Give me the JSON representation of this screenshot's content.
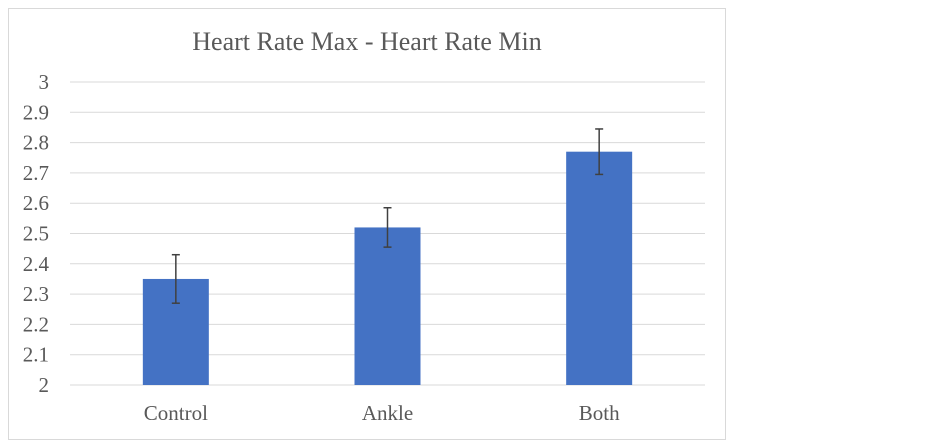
{
  "chart_data": {
    "type": "bar",
    "title": "Heart Rate Max - Heart Rate Min",
    "xlabel": "",
    "ylabel": "",
    "categories": [
      "Control",
      "Ankle",
      "Both"
    ],
    "values": [
      2.35,
      2.52,
      2.77
    ],
    "error": [
      0.08,
      0.065,
      0.075
    ],
    "ylim": [
      2,
      3
    ],
    "yticks": [
      "2",
      "2.1",
      "2.2",
      "2.3",
      "2.4",
      "2.5",
      "2.6",
      "2.7",
      "2.8",
      "2.9",
      "3"
    ],
    "grid": true,
    "legend": "none",
    "colors": {
      "bar": "#4472c4",
      "grid": "#d9d9d9",
      "error": "#404040",
      "text": "#595959"
    }
  }
}
